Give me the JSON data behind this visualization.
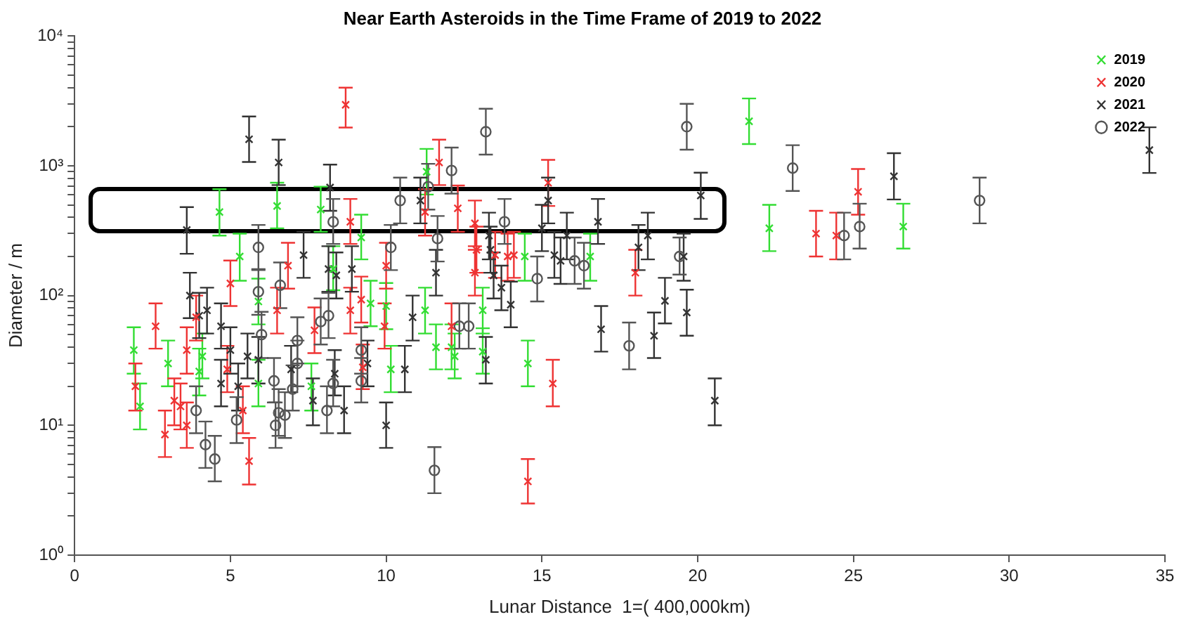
{
  "chart_data": {
    "type": "scatter",
    "title": "Near Earth Asteroids in the Time Frame of 2019 to 2022",
    "xlabel": "Lunar Distance  1=( 400,000km)",
    "ylabel": "Diameter / m",
    "xlim": [
      0,
      35
    ],
    "xticks": [
      0,
      5,
      10,
      15,
      20,
      25,
      30,
      35
    ],
    "ylim": [
      1,
      10000
    ],
    "log": "y",
    "yticks": [
      {
        "value": 1,
        "label": "10⁰"
      },
      {
        "value": 2,
        "label": null
      },
      {
        "value": 3,
        "label": null
      },
      {
        "value": 4,
        "label": null
      },
      {
        "value": 5,
        "label": null
      },
      {
        "value": 6,
        "label": null
      },
      {
        "value": 7,
        "label": null
      },
      {
        "value": 8,
        "label": null
      },
      {
        "value": 9,
        "label": null
      },
      {
        "value": 10,
        "label": "10¹"
      },
      {
        "value": 20,
        "label": null
      },
      {
        "value": 30,
        "label": null
      },
      {
        "value": 40,
        "label": null
      },
      {
        "value": 50,
        "label": null
      },
      {
        "value": 60,
        "label": null
      },
      {
        "value": 70,
        "label": null
      },
      {
        "value": 80,
        "label": null
      },
      {
        "value": 90,
        "label": null
      },
      {
        "value": 100,
        "label": "10²"
      },
      {
        "value": 200,
        "label": null
      },
      {
        "value": 300,
        "label": null
      },
      {
        "value": 400,
        "label": null
      },
      {
        "value": 500,
        "label": null
      },
      {
        "value": 600,
        "label": null
      },
      {
        "value": 700,
        "label": null
      },
      {
        "value": 800,
        "label": null
      },
      {
        "value": 900,
        "label": null
      },
      {
        "value": 1000,
        "label": "10³"
      },
      {
        "value": 2000,
        "label": null
      },
      {
        "value": 3000,
        "label": null
      },
      {
        "value": 4000,
        "label": null
      },
      {
        "value": 5000,
        "label": null
      },
      {
        "value": 6000,
        "label": null
      },
      {
        "value": 7000,
        "label": null
      },
      {
        "value": 8000,
        "label": null
      },
      {
        "value": 9000,
        "label": null
      },
      {
        "value": 10000,
        "label": "10⁴"
      }
    ],
    "grid": false,
    "legend": "top right",
    "series": [
      {
        "name": "2019",
        "color": "#33dd33",
        "marker": "cross",
        "x": [
          1.9,
          2.1,
          3.0,
          4.1,
          4.0,
          4.65,
          5.3,
          5.9,
          6.5,
          5.9,
          7.6,
          7.9,
          8.3,
          9.2,
          9.5,
          10.0,
          10.15,
          11.3,
          12.1,
          11.25,
          11.6,
          12.2,
          13.1,
          13.1,
          14.45,
          14.55,
          16.55,
          21.65,
          22.3,
          26.6
        ],
        "values": [
          38,
          14,
          30,
          34,
          26,
          440,
          200,
          90,
          490,
          21,
          20,
          460,
          160,
          280,
          87,
          83,
          27,
          900,
          40,
          77,
          40,
          34,
          77,
          37,
          200,
          30,
          200,
          2200,
          330,
          340
        ],
        "errors": [
          [
            25,
            57
          ],
          [
            9.3,
            21
          ],
          [
            20,
            45
          ],
          [
            23,
            51
          ],
          [
            17,
            39
          ],
          [
            290,
            660
          ],
          [
            130,
            300
          ],
          [
            60,
            135
          ],
          [
            330,
            740
          ],
          [
            14,
            32
          ],
          [
            13,
            30
          ],
          [
            310,
            690
          ],
          [
            110,
            240
          ],
          [
            190,
            420
          ],
          [
            58,
            130
          ],
          [
            55,
            125
          ],
          [
            18,
            41
          ],
          [
            600,
            1350
          ],
          [
            27,
            60
          ],
          [
            51,
            115
          ],
          [
            27,
            60
          ],
          [
            23,
            51
          ],
          [
            51,
            115
          ],
          [
            25,
            56
          ],
          [
            130,
            300
          ],
          [
            20,
            45
          ],
          [
            130,
            300
          ],
          [
            1470,
            3300
          ],
          [
            220,
            500
          ],
          [
            230,
            510
          ]
        ]
      },
      {
        "name": "2020",
        "color": "#ee3333",
        "marker": "cross",
        "x": [
          1.95,
          2.6,
          2.9,
          3.2,
          3.4,
          3.6,
          3.6,
          3.9,
          5.0,
          4.9,
          5.6,
          5.4,
          6.5,
          6.85,
          7.7,
          8.7,
          8.85,
          8.85,
          9.2,
          9.25,
          10.0,
          9.95,
          11.7,
          11.25,
          12.1,
          12.3,
          12.85,
          12.85,
          12.9,
          13.5,
          13.9,
          14.1,
          14.55,
          15.2,
          15.35,
          18.0,
          23.8,
          25.15,
          24.45
        ],
        "values": [
          20,
          58,
          8.5,
          15.5,
          14,
          10,
          38,
          68,
          124,
          27,
          5.3,
          13,
          77,
          170,
          54,
          2950,
          370,
          77,
          93,
          28,
          170,
          58,
          1060,
          440,
          58,
          470,
          360,
          150,
          225,
          205,
          200,
          205,
          3.7,
          740,
          21,
          150,
          300,
          630,
          290
        ],
        "errors": [
          [
            13,
            30
          ],
          [
            39,
            87
          ],
          [
            5.7,
            13
          ],
          [
            10,
            23
          ],
          [
            9.3,
            21
          ],
          [
            6.7,
            15
          ],
          [
            25,
            57
          ],
          [
            45,
            100
          ],
          [
            83,
            186
          ],
          [
            18,
            41
          ],
          [
            3.5,
            8
          ],
          [
            8.7,
            20
          ],
          [
            51,
            115
          ],
          [
            113,
            255
          ],
          [
            36,
            81
          ],
          [
            1970,
            4000
          ],
          [
            250,
            555
          ],
          [
            51,
            115
          ],
          [
            62,
            140
          ],
          [
            19,
            42
          ],
          [
            113,
            255
          ],
          [
            39,
            87
          ],
          [
            710,
            1590
          ],
          [
            290,
            660
          ],
          [
            39,
            87
          ],
          [
            310,
            705
          ],
          [
            240,
            540
          ],
          [
            100,
            225
          ],
          [
            150,
            340
          ],
          [
            137,
            310
          ],
          [
            130,
            300
          ],
          [
            137,
            310
          ],
          [
            2.5,
            5.5
          ],
          [
            490,
            1110
          ],
          [
            14,
            32
          ],
          [
            100,
            225
          ],
          [
            200,
            450
          ],
          [
            420,
            945
          ],
          [
            190,
            435
          ]
        ]
      },
      {
        "name": "2021",
        "color": "#333333",
        "marker": "cross",
        "x": [
          3.6,
          3.7,
          4.0,
          4.25,
          4.7,
          4.7,
          5.0,
          5.25,
          5.6,
          5.55,
          5.9,
          6.55,
          6.95,
          7.35,
          7.65,
          8.2,
          8.15,
          8.35,
          8.4,
          8.65,
          8.9,
          9.4,
          10.0,
          10.6,
          10.85,
          11.1,
          11.6,
          13.2,
          13.3,
          13.35,
          13.45,
          13.7,
          14.0,
          15.0,
          15.2,
          15.4,
          15.6,
          15.8,
          16.8,
          16.9,
          18.1,
          18.4,
          18.6,
          18.95,
          19.55,
          19.65,
          20.1,
          20.55,
          26.3,
          34.5
        ],
        "values": [
          320,
          100,
          70,
          77,
          58,
          21,
          38,
          20,
          1600,
          34,
          32,
          1060,
          27,
          205,
          15.5,
          680,
          160,
          25,
          143,
          13,
          160,
          30,
          10,
          27,
          68,
          540,
          150,
          32,
          290,
          225,
          143,
          115,
          85,
          330,
          540,
          205,
          185,
          290,
          370,
          55,
          235,
          290,
          49,
          91,
          200,
          74,
          590,
          15.5,
          830,
          1320
        ],
        "errors": [
          [
            210,
            480
          ],
          [
            67,
            150
          ],
          [
            47,
            105
          ],
          [
            51,
            115
          ],
          [
            39,
            87
          ],
          [
            14,
            32
          ],
          [
            25,
            57
          ],
          [
            13,
            30
          ],
          [
            1070,
            2400
          ],
          [
            23,
            51
          ],
          [
            21,
            48
          ],
          [
            710,
            1590
          ],
          [
            18,
            41
          ],
          [
            137,
            310
          ],
          [
            10,
            23
          ],
          [
            450,
            1020
          ],
          [
            107,
            240
          ],
          [
            17,
            38
          ],
          [
            95,
            215
          ],
          [
            8.7,
            20
          ],
          [
            107,
            240
          ],
          [
            20,
            45
          ],
          [
            6.7,
            15
          ],
          [
            18,
            41
          ],
          [
            45,
            100
          ],
          [
            360,
            810
          ],
          [
            100,
            225
          ],
          [
            21,
            48
          ],
          [
            190,
            435
          ],
          [
            150,
            340
          ],
          [
            95,
            215
          ],
          [
            77,
            170
          ],
          [
            57,
            128
          ],
          [
            220,
            500
          ],
          [
            360,
            810
          ],
          [
            137,
            310
          ],
          [
            123,
            280
          ],
          [
            190,
            435
          ],
          [
            250,
            555
          ],
          [
            37,
            83
          ],
          [
            157,
            350
          ],
          [
            190,
            435
          ],
          [
            33,
            74
          ],
          [
            61,
            137
          ],
          [
            130,
            300
          ],
          [
            49,
            111
          ],
          [
            390,
            885
          ],
          [
            10,
            23
          ],
          [
            550,
            1250
          ],
          [
            880,
            1980
          ]
        ]
      },
      {
        "name": "2022",
        "color": "#555555",
        "marker": "circle",
        "x": [
          3.9,
          4.2,
          4.5,
          5.2,
          5.9,
          5.9,
          6.0,
          6.4,
          6.45,
          6.55,
          6.75,
          6.6,
          7.0,
          7.15,
          7.15,
          7.9,
          8.1,
          8.15,
          8.3,
          8.3,
          9.2,
          9.2,
          10.15,
          10.45,
          11.55,
          11.35,
          12.1,
          11.65,
          12.35,
          12.65,
          13.2,
          13.8,
          14.85,
          16.05,
          16.35,
          17.8,
          19.42,
          19.65,
          23.05,
          24.7,
          25.2,
          29.05
        ],
        "values": [
          13,
          7.1,
          5.5,
          11,
          235,
          107,
          50,
          22,
          10,
          12.5,
          12,
          120,
          19,
          45,
          30,
          63,
          13,
          70,
          370,
          21,
          38,
          22,
          235,
          540,
          4.5,
          690,
          920,
          275,
          58,
          58,
          1830,
          370,
          135,
          185,
          170,
          41,
          200,
          2000,
          960,
          290,
          340,
          540
        ],
        "errors": [
          [
            8.7,
            20
          ],
          [
            4.7,
            10.7
          ],
          [
            3.7,
            8.3
          ],
          [
            7.3,
            16.5
          ],
          [
            157,
            350
          ],
          [
            71,
            160
          ],
          [
            33,
            75
          ],
          [
            15,
            33
          ],
          [
            6.7,
            15
          ],
          [
            8.3,
            19
          ],
          [
            8,
            18
          ],
          [
            80,
            180
          ],
          [
            13,
            29
          ],
          [
            30,
            68
          ],
          [
            20,
            45
          ],
          [
            42,
            95
          ],
          [
            8.7,
            20
          ],
          [
            47,
            105
          ],
          [
            250,
            555
          ],
          [
            14,
            32
          ],
          [
            25,
            57
          ],
          [
            15,
            33
          ],
          [
            157,
            350
          ],
          [
            360,
            810
          ],
          [
            3,
            6.8
          ],
          [
            460,
            1035
          ],
          [
            610,
            1380
          ],
          [
            183,
            410
          ],
          [
            39,
            87
          ],
          [
            39,
            87
          ],
          [
            1220,
            2750
          ],
          [
            250,
            555
          ],
          [
            90,
            200
          ],
          [
            123,
            280
          ],
          [
            113,
            255
          ],
          [
            27,
            62
          ],
          [
            145,
            280
          ],
          [
            1330,
            3000
          ],
          [
            640,
            1440
          ],
          [
            190,
            435
          ],
          [
            230,
            510
          ],
          [
            360,
            810
          ]
        ]
      }
    ]
  }
}
